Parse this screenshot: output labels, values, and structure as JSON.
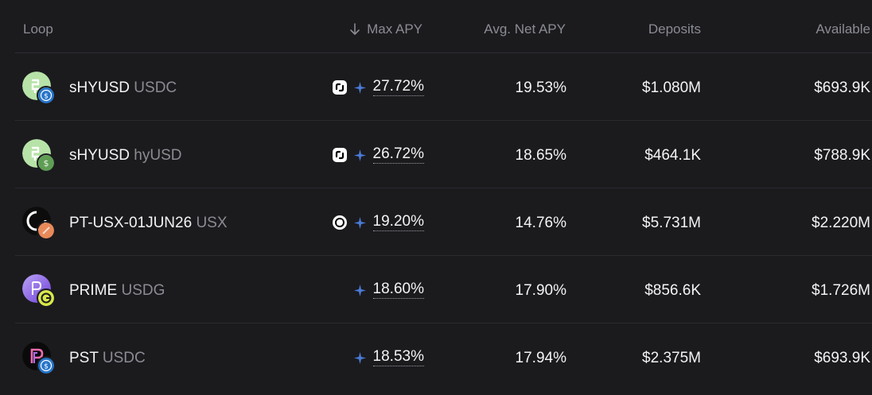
{
  "header": {
    "loop": "Loop",
    "max_apy": "Max APY",
    "avg_net_apy": "Avg. Net APY",
    "deposits": "Deposits",
    "available": "Available"
  },
  "rows": [
    {
      "base": "sHYUSD",
      "quote": "USDC",
      "max_apy": "27.72%",
      "avg_net_apy": "19.53%",
      "deposits": "$1.080M",
      "available": "$693.9K",
      "protocol_icon": "loop-protocol-icon",
      "base_icon": "shyusd-icon",
      "quote_icon": "usdc-icon"
    },
    {
      "base": "sHYUSD",
      "quote": "hyUSD",
      "max_apy": "26.72%",
      "avg_net_apy": "18.65%",
      "deposits": "$464.1K",
      "available": "$788.9K",
      "protocol_icon": "loop-protocol-icon",
      "base_icon": "shyusd-icon",
      "quote_icon": "hyusd-icon"
    },
    {
      "base": "PT-USX-01JUN26",
      "quote": "USX",
      "max_apy": "19.20%",
      "avg_net_apy": "14.76%",
      "deposits": "$5.731M",
      "available": "$2.220M",
      "protocol_icon": "exponent-protocol-icon",
      "base_icon": "pt-usx-icon",
      "quote_icon": "usx-icon"
    },
    {
      "base": "PRIME",
      "quote": "USDG",
      "max_apy": "18.60%",
      "avg_net_apy": "17.90%",
      "deposits": "$856.6K",
      "available": "$1.726M",
      "protocol_icon": "",
      "base_icon": "prime-icon",
      "quote_icon": "usdg-icon"
    },
    {
      "base": "PST",
      "quote": "USDC",
      "max_apy": "18.53%",
      "avg_net_apy": "17.94%",
      "deposits": "$2.375M",
      "available": "$693.9K",
      "protocol_icon": "",
      "base_icon": "pst-icon",
      "quote_icon": "usdc-icon"
    }
  ],
  "colors": {
    "background": "#1b1b1e",
    "text": "#f3f3f5",
    "muted": "#8b8c93",
    "spark": "#4a7bd8",
    "usdc": "#2775ca",
    "shyusd": "#b7e3a8",
    "hyusd": "#5f9d55"
  }
}
